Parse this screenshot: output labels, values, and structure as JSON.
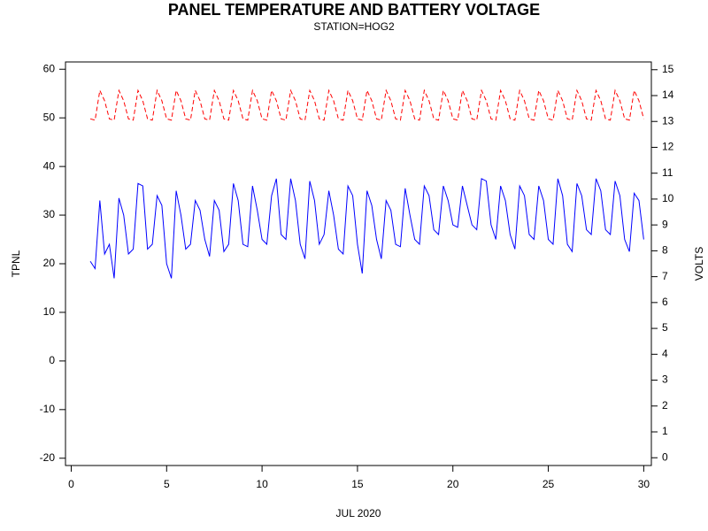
{
  "chart_data": {
    "type": "line",
    "title": "PANEL TEMPERATURE AND BATTERY VOLTAGE",
    "subtitle": "STATION=HOG2",
    "xlabel": "JUL 2020",
    "ylabel": "TPNL",
    "y2label": "VOLTS",
    "xlim": [
      -0.3,
      30.4
    ],
    "xticks": [
      0,
      5,
      10,
      15,
      20,
      25,
      30
    ],
    "ylim": [
      -21.5,
      61.5
    ],
    "yticks": [
      -20,
      -10,
      0,
      10,
      20,
      30,
      40,
      50,
      60
    ],
    "y2lim": [
      -0.3,
      15.3
    ],
    "y2ticks": [
      0,
      1,
      2,
      3,
      4,
      5,
      6,
      7,
      8,
      9,
      10,
      11,
      12,
      13,
      14,
      15
    ],
    "x": [
      1,
      1.25,
      1.5,
      1.75,
      2,
      2.25,
      2.5,
      2.75,
      3,
      3.25,
      3.5,
      3.75,
      4,
      4.25,
      4.5,
      4.75,
      5,
      5.25,
      5.5,
      5.75,
      6,
      6.25,
      6.5,
      6.75,
      7,
      7.25,
      7.5,
      7.75,
      8,
      8.25,
      8.5,
      8.75,
      9,
      9.25,
      9.5,
      9.75,
      10,
      10.25,
      10.5,
      10.75,
      11,
      11.25,
      11.5,
      11.75,
      12,
      12.25,
      12.5,
      12.75,
      13,
      13.25,
      13.5,
      13.75,
      14,
      14.25,
      14.5,
      14.75,
      15,
      15.25,
      15.5,
      15.75,
      16,
      16.25,
      16.5,
      16.75,
      17,
      17.25,
      17.5,
      17.75,
      18,
      18.25,
      18.5,
      18.75,
      19,
      19.25,
      19.5,
      19.75,
      20,
      20.25,
      20.5,
      20.75,
      21,
      21.25,
      21.5,
      21.75,
      22,
      22.25,
      22.5,
      22.75,
      23,
      23.25,
      23.5,
      23.75,
      24,
      24.25,
      24.5,
      24.75,
      25,
      25.25,
      25.5,
      25.75,
      26,
      26.25,
      26.5,
      26.75,
      27,
      27.25,
      27.5,
      27.75,
      28,
      28.25,
      28.5,
      28.75,
      29,
      29.25,
      29.5,
      29.75,
      30
    ],
    "series": [
      {
        "color": "#0000ff",
        "dash": false,
        "values": [
          20.5,
          19,
          33,
          22,
          24,
          17,
          33.5,
          30,
          22,
          23,
          36.5,
          36,
          23,
          24,
          34,
          32,
          20,
          17,
          35,
          30,
          23,
          24,
          33,
          31,
          25,
          21.5,
          33,
          31,
          22.5,
          24,
          36.5,
          33,
          24,
          23.5,
          36,
          31,
          25,
          24,
          34,
          37.5,
          26,
          25,
          37.5,
          33,
          24,
          21,
          37,
          33,
          24,
          26,
          35,
          30,
          23,
          22,
          36,
          34,
          24,
          18,
          35,
          32,
          25,
          21,
          33,
          31,
          24,
          23.5,
          35.5,
          30,
          25,
          24,
          36,
          34,
          27,
          26,
          36,
          33,
          28,
          27.5,
          36,
          32,
          28,
          27,
          37.5,
          37,
          28,
          25,
          36,
          33,
          26,
          23,
          36,
          34,
          26,
          25,
          36,
          33,
          25,
          24,
          37.5,
          34,
          24,
          22.5,
          36.5,
          34,
          27,
          26,
          37.5,
          35,
          27,
          26,
          37,
          34,
          25,
          22.5,
          34.5,
          33,
          25
        ]
      },
      {
        "color": "#ff0000",
        "dash": true,
        "axis": "y2",
        "values": [
          13.1,
          13.05,
          14.2,
          13.8,
          13.1,
          13.05,
          14.2,
          13.8,
          13.1,
          13.05,
          14.2,
          13.8,
          13.1,
          13.05,
          14.2,
          13.8,
          13.1,
          13.05,
          14.2,
          13.8,
          13.1,
          13.05,
          14.2,
          13.8,
          13.1,
          13.05,
          14.2,
          13.8,
          13.1,
          13.05,
          14.2,
          13.8,
          13.1,
          13.05,
          14.2,
          13.8,
          13.1,
          13.05,
          14.2,
          13.8,
          13.1,
          13.05,
          14.2,
          13.8,
          13.1,
          13.05,
          14.2,
          13.8,
          13.1,
          13.05,
          14.2,
          13.8,
          13.1,
          13.05,
          14.2,
          13.8,
          13.1,
          13.05,
          14.2,
          13.8,
          13.1,
          13.05,
          14.2,
          13.8,
          13.1,
          13.05,
          14.2,
          13.8,
          13.1,
          13.05,
          14.2,
          13.8,
          13.1,
          13.05,
          14.2,
          13.8,
          13.1,
          13.05,
          14.2,
          13.8,
          13.1,
          13.05,
          14.2,
          13.8,
          13.1,
          13.05,
          14.2,
          13.8,
          13.1,
          13.05,
          14.2,
          13.8,
          13.1,
          13.05,
          14.2,
          13.8,
          13.1,
          13.05,
          14.2,
          13.8,
          13.1,
          13.05,
          14.2,
          13.8,
          13.1,
          13.05,
          14.2,
          13.8,
          13.1,
          13.05,
          14.2,
          13.8,
          13.1,
          13.05,
          14.2,
          13.8,
          13.1
        ]
      }
    ]
  }
}
